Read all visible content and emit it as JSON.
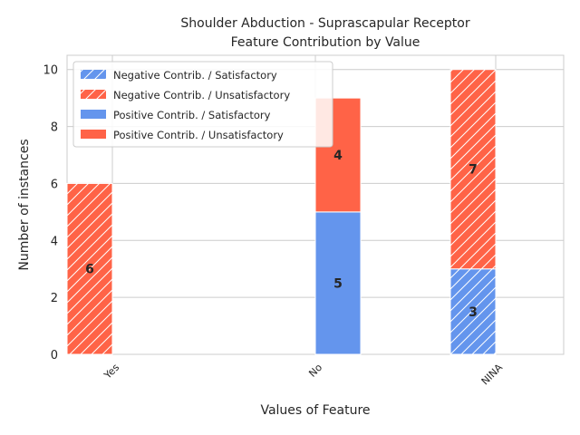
{
  "chart_data": {
    "type": "bar",
    "stacked": true,
    "title_lines": [
      "Shoulder Abduction - Suprascapular Receptor",
      "Feature Contribution by Value"
    ],
    "xlabel": "Values of Feature",
    "ylabel": "Number of instances",
    "categories": [
      "Yes",
      "No",
      "NINA"
    ],
    "ylim": [
      0,
      10.5
    ],
    "yticks": [
      0,
      2,
      4,
      6,
      8,
      10
    ],
    "grid": true,
    "legend_position": "upper-left",
    "series": [
      {
        "name": "Negative Contrib. / Satisfactory",
        "group": "negative",
        "pattern": "hatch",
        "color": "#6495ED",
        "values": [
          0,
          0,
          3
        ]
      },
      {
        "name": "Negative Contrib. / Unsatisfactory",
        "group": "negative",
        "pattern": "hatch",
        "color": "#FF6347",
        "values": [
          6,
          0,
          7
        ]
      },
      {
        "name": "Positive Contrib. / Satisfactory",
        "group": "positive",
        "pattern": "solid",
        "color": "#6495ED",
        "values": [
          0,
          5,
          0
        ]
      },
      {
        "name": "Positive Contrib. / Unsatisfactory",
        "group": "positive",
        "pattern": "solid",
        "color": "#FF6347",
        "values": [
          0,
          4,
          0
        ]
      }
    ]
  }
}
